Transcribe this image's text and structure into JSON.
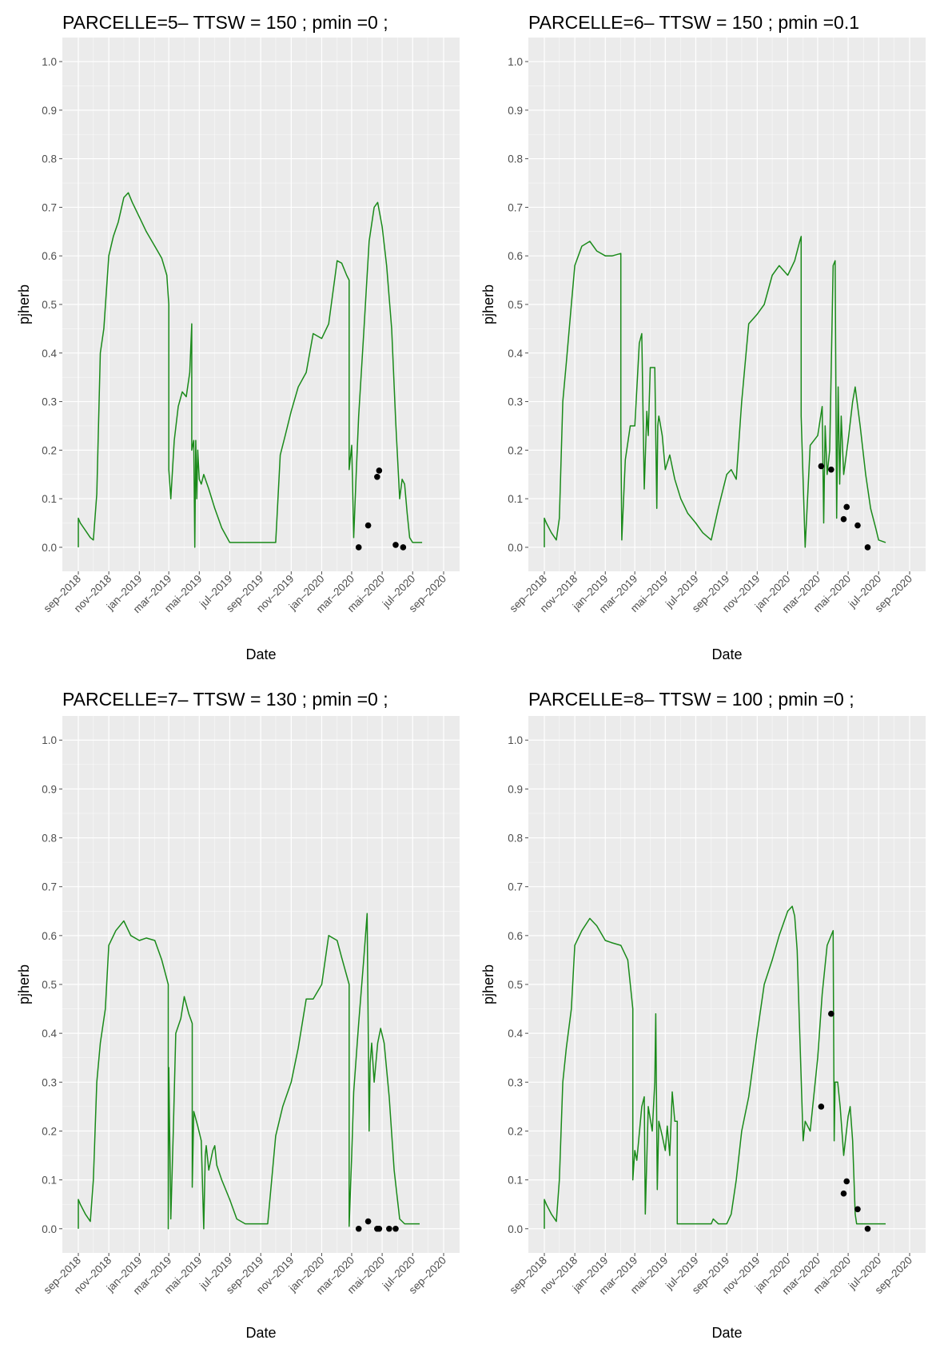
{
  "colors": {
    "panel_background": "#ebebeb",
    "grid_major": "#ffffff",
    "line": "#1a8a1a",
    "points": "#000000"
  },
  "chart_data": [
    {
      "type": "line",
      "title": "PARCELLE=5– TTSW = 150 ; pmin =0 ;",
      "xlabel": "Date",
      "ylabel": "pjherb",
      "ylim": [
        0,
        1.0
      ],
      "yticks": [
        "0.0",
        "0.1",
        "0.2",
        "0.3",
        "0.4",
        "0.5",
        "0.6",
        "0.7",
        "0.8",
        "0.9",
        "1.0"
      ],
      "xticks": [
        "sep–2018",
        "nov–2018",
        "jan–2019",
        "mar–2019",
        "mai–2019",
        "jul–2019",
        "sep–2019",
        "nov–2019",
        "jan–2020",
        "mar–2020",
        "mai–2020",
        "jul–2020",
        "sep–2020"
      ],
      "grid": true,
      "series": [
        {
          "x": [
            "2018-09-01",
            "2018-09-01",
            "2018-09-05",
            "2018-09-15",
            "2018-09-25",
            "2018-10-01",
            "2018-10-08",
            "2018-10-15",
            "2018-10-22",
            "2018-11-01",
            "2018-11-10",
            "2018-11-20",
            "2018-12-01",
            "2018-12-10",
            "2018-12-18",
            "2019-01-01",
            "2019-01-15",
            "2019-02-01",
            "2019-02-15",
            "2019-02-25",
            "2019-03-01",
            "2019-03-01",
            "2019-03-05",
            "2019-03-12",
            "2019-03-20",
            "2019-03-28",
            "2019-04-05",
            "2019-04-12",
            "2019-04-16",
            "2019-04-16",
            "2019-04-20",
            "2019-04-22",
            "2019-04-24",
            "2019-04-26",
            "2019-04-28",
            "2019-05-01",
            "2019-05-05",
            "2019-05-10",
            "2019-05-20",
            "2019-06-01",
            "2019-06-15",
            "2019-07-01",
            "2019-07-15",
            "2019-08-01",
            "2019-08-15",
            "2019-09-01",
            "2019-09-15",
            "2019-10-01",
            "2019-10-10",
            "2019-10-20",
            "2019-11-01",
            "2019-11-15",
            "2019-12-01",
            "2019-12-15",
            "2020-01-01",
            "2020-01-15",
            "2020-02-01",
            "2020-02-10",
            "2020-02-20",
            "2020-02-25",
            "2020-02-25",
            "2020-03-01",
            "2020-03-05",
            "2020-03-10",
            "2020-03-15",
            "2020-03-25",
            "2020-04-05",
            "2020-04-15",
            "2020-04-22",
            "2020-05-01",
            "2020-05-10",
            "2020-05-20",
            "2020-05-28",
            "2020-06-05",
            "2020-06-10",
            "2020-06-15",
            "2020-06-20",
            "2020-06-25",
            "2020-07-01",
            "2020-07-10",
            "2020-07-20"
          ],
          "y": [
            0.0,
            0.06,
            0.05,
            0.035,
            0.02,
            0.015,
            0.11,
            0.4,
            0.45,
            0.6,
            0.64,
            0.67,
            0.72,
            0.73,
            0.71,
            0.68,
            0.65,
            0.62,
            0.595,
            0.56,
            0.5,
            0.16,
            0.1,
            0.22,
            0.29,
            0.32,
            0.31,
            0.36,
            0.46,
            0.2,
            0.22,
            0.0,
            0.22,
            0.1,
            0.2,
            0.14,
            0.13,
            0.15,
            0.12,
            0.08,
            0.04,
            0.01,
            0.01,
            0.01,
            0.01,
            0.01,
            0.01,
            0.01,
            0.19,
            0.23,
            0.28,
            0.33,
            0.36,
            0.44,
            0.43,
            0.46,
            0.59,
            0.585,
            0.56,
            0.55,
            0.16,
            0.21,
            0.02,
            0.15,
            0.27,
            0.44,
            0.63,
            0.7,
            0.71,
            0.66,
            0.58,
            0.45,
            0.26,
            0.1,
            0.14,
            0.13,
            0.07,
            0.02,
            0.01,
            0.01,
            0.01
          ]
        }
      ],
      "observations": {
        "x": [
          "2020-03-15",
          "2020-04-03",
          "2020-04-21",
          "2020-04-25",
          "2020-05-28",
          "2020-06-12"
        ],
        "y": [
          0.0,
          0.045,
          0.145,
          0.158,
          0.005,
          0.0
        ]
      }
    },
    {
      "type": "line",
      "title": "PARCELLE=6– TTSW = 150 ; pmin =0.1",
      "xlabel": "Date",
      "ylabel": "pjherb",
      "ylim": [
        0,
        1.0
      ],
      "yticks": [
        "0.0",
        "0.1",
        "0.2",
        "0.3",
        "0.4",
        "0.5",
        "0.6",
        "0.7",
        "0.8",
        "0.9",
        "1.0"
      ],
      "xticks": [
        "sep–2018",
        "nov–2018",
        "jan–2019",
        "mar–2019",
        "mai–2019",
        "jul–2019",
        "sep–2019",
        "nov–2019",
        "jan–2020",
        "mar–2020",
        "mai–2020",
        "jul–2020",
        "sep–2020"
      ],
      "grid": true,
      "series": [
        {
          "x": [
            "2018-09-01",
            "2018-09-01",
            "2018-09-05",
            "2018-09-15",
            "2018-09-25",
            "2018-10-01",
            "2018-10-08",
            "2018-10-15",
            "2018-10-25",
            "2018-11-01",
            "2018-11-15",
            "2018-12-01",
            "2018-12-15",
            "2019-01-01",
            "2019-01-15",
            "2019-02-01",
            "2019-02-01",
            "2019-02-03",
            "2019-02-10",
            "2019-02-20",
            "2019-03-01",
            "2019-03-10",
            "2019-03-15",
            "2019-03-20",
            "2019-03-25",
            "2019-03-28",
            "2019-04-01",
            "2019-04-10",
            "2019-04-14",
            "2019-04-16",
            "2019-04-18",
            "2019-04-20",
            "2019-04-25",
            "2019-05-01",
            "2019-05-10",
            "2019-05-20",
            "2019-06-01",
            "2019-06-15",
            "2019-07-01",
            "2019-07-15",
            "2019-08-01",
            "2019-08-15",
            "2019-09-01",
            "2019-09-10",
            "2019-09-20",
            "2019-10-01",
            "2019-10-15",
            "2019-11-01",
            "2019-11-15",
            "2019-12-01",
            "2019-12-15",
            "2020-01-01",
            "2020-01-15",
            "2020-01-25",
            "2020-01-28",
            "2020-01-28",
            "2020-02-05",
            "2020-02-15",
            "2020-03-01",
            "2020-03-10",
            "2020-03-13",
            "2020-03-16",
            "2020-03-20",
            "2020-03-25",
            "2020-04-01",
            "2020-04-05",
            "2020-04-08",
            "2020-04-11",
            "2020-04-14",
            "2020-04-17",
            "2020-04-22",
            "2020-05-01",
            "2020-05-10",
            "2020-05-15",
            "2020-05-25",
            "2020-06-05",
            "2020-06-15",
            "2020-06-25",
            "2020-07-01",
            "2020-07-15"
          ],
          "y": [
            0.0,
            0.06,
            0.05,
            0.03,
            0.015,
            0.06,
            0.3,
            0.38,
            0.5,
            0.58,
            0.62,
            0.63,
            0.61,
            0.6,
            0.6,
            0.605,
            0.25,
            0.015,
            0.18,
            0.25,
            0.25,
            0.42,
            0.44,
            0.12,
            0.28,
            0.23,
            0.37,
            0.37,
            0.08,
            0.25,
            0.27,
            0.26,
            0.23,
            0.16,
            0.19,
            0.14,
            0.1,
            0.07,
            0.05,
            0.03,
            0.015,
            0.08,
            0.15,
            0.16,
            0.14,
            0.3,
            0.46,
            0.48,
            0.5,
            0.56,
            0.58,
            0.56,
            0.59,
            0.63,
            0.64,
            0.27,
            0.0,
            0.21,
            0.23,
            0.29,
            0.05,
            0.25,
            0.15,
            0.2,
            0.58,
            0.59,
            0.06,
            0.33,
            0.13,
            0.27,
            0.15,
            0.22,
            0.3,
            0.33,
            0.25,
            0.15,
            0.08,
            0.04,
            0.015,
            0.01
          ]
        }
      ],
      "observations": {
        "x": [
          "2020-03-08",
          "2020-03-28",
          "2020-04-22",
          "2020-04-28",
          "2020-05-20",
          "2020-06-09"
        ],
        "y": [
          0.167,
          0.16,
          0.058,
          0.083,
          0.045,
          0.0
        ]
      }
    },
    {
      "type": "line",
      "title": "PARCELLE=7– TTSW = 130 ; pmin =0 ;",
      "xlabel": "Date",
      "ylabel": "pjherb",
      "ylim": [
        0,
        1.0
      ],
      "yticks": [
        "0.0",
        "0.1",
        "0.2",
        "0.3",
        "0.4",
        "0.5",
        "0.6",
        "0.7",
        "0.8",
        "0.9",
        "1.0"
      ],
      "xticks": [
        "sep–2018",
        "nov–2018",
        "jan–2019",
        "mar–2019",
        "mai–2019",
        "jul–2019",
        "sep–2019",
        "nov–2019",
        "jan–2020",
        "mar–2020",
        "mai–2020",
        "jul–2020",
        "sep–2020"
      ],
      "grid": true,
      "series": [
        {
          "x": [
            "2018-09-01",
            "2018-09-01",
            "2018-09-05",
            "2018-09-15",
            "2018-09-25",
            "2018-10-01",
            "2018-10-08",
            "2018-10-15",
            "2018-10-25",
            "2018-11-01",
            "2018-11-15",
            "2018-12-01",
            "2018-12-15",
            "2019-01-01",
            "2019-01-15",
            "2019-02-01",
            "2019-02-15",
            "2019-02-28",
            "2019-02-28",
            "2019-03-01",
            "2019-03-05",
            "2019-03-10",
            "2019-03-15",
            "2019-03-25",
            "2019-04-01",
            "2019-04-10",
            "2019-04-17",
            "2019-04-17",
            "2019-04-20",
            "2019-04-28",
            "2019-05-05",
            "2019-05-10",
            "2019-05-13",
            "2019-05-15",
            "2019-05-20",
            "2019-05-28",
            "2019-06-01",
            "2019-06-05",
            "2019-06-15",
            "2019-07-01",
            "2019-07-15",
            "2019-08-01",
            "2019-08-15",
            "2019-09-01",
            "2019-09-15",
            "2019-10-01",
            "2019-10-15",
            "2019-11-01",
            "2019-11-15",
            "2019-12-01",
            "2019-12-15",
            "2020-01-01",
            "2020-01-15",
            "2020-02-01",
            "2020-02-10",
            "2020-02-25",
            "2020-02-25",
            "2020-03-01",
            "2020-03-05",
            "2020-03-15",
            "2020-03-25",
            "2020-04-01",
            "2020-04-05",
            "2020-04-07",
            "2020-04-10",
            "2020-04-15",
            "2020-04-22",
            "2020-04-28",
            "2020-05-05",
            "2020-05-15",
            "2020-05-25",
            "2020-06-05",
            "2020-06-15",
            "2020-06-25",
            "2020-07-15"
          ],
          "y": [
            0.0,
            0.06,
            0.05,
            0.03,
            0.015,
            0.1,
            0.3,
            0.38,
            0.45,
            0.58,
            0.61,
            0.63,
            0.6,
            0.59,
            0.595,
            0.59,
            0.55,
            0.5,
            0.0,
            0.33,
            0.02,
            0.2,
            0.4,
            0.43,
            0.475,
            0.44,
            0.42,
            0.085,
            0.24,
            0.21,
            0.18,
            0.0,
            0.15,
            0.17,
            0.12,
            0.16,
            0.17,
            0.13,
            0.1,
            0.06,
            0.02,
            0.01,
            0.01,
            0.01,
            0.01,
            0.19,
            0.25,
            0.3,
            0.37,
            0.47,
            0.47,
            0.5,
            0.6,
            0.59,
            0.555,
            0.5,
            0.005,
            0.15,
            0.28,
            0.42,
            0.55,
            0.645,
            0.2,
            0.34,
            0.38,
            0.3,
            0.38,
            0.41,
            0.38,
            0.27,
            0.12,
            0.02,
            0.01,
            0.01,
            0.01
          ]
        }
      ],
      "observations": {
        "x": [
          "2020-03-15",
          "2020-04-03",
          "2020-04-21",
          "2020-04-25",
          "2020-05-15",
          "2020-05-28"
        ],
        "y": [
          0.0,
          0.015,
          0.0,
          0.0,
          0.0,
          0.0
        ]
      }
    },
    {
      "type": "line",
      "title": "PARCELLE=8– TTSW = 100 ; pmin =0 ;",
      "xlabel": "Date",
      "ylabel": "pjherb",
      "ylim": [
        0,
        1.0
      ],
      "yticks": [
        "0.0",
        "0.1",
        "0.2",
        "0.3",
        "0.4",
        "0.5",
        "0.6",
        "0.7",
        "0.8",
        "0.9",
        "1.0"
      ],
      "xticks": [
        "sep–2018",
        "nov–2018",
        "jan–2019",
        "mar–2019",
        "mai–2019",
        "jul–2019",
        "sep–2019",
        "nov–2019",
        "jan–2020",
        "mar–2020",
        "mai–2020",
        "jul–2020",
        "sep–2020"
      ],
      "grid": true,
      "series": [
        {
          "x": [
            "2018-09-01",
            "2018-09-01",
            "2018-09-05",
            "2018-09-15",
            "2018-09-25",
            "2018-10-01",
            "2018-10-08",
            "2018-10-15",
            "2018-10-25",
            "2018-11-01",
            "2018-11-15",
            "2018-12-01",
            "2018-12-15",
            "2019-01-01",
            "2019-01-15",
            "2019-02-01",
            "2019-02-15",
            "2019-02-25",
            "2019-02-25",
            "2019-03-01",
            "2019-03-05",
            "2019-03-15",
            "2019-03-20",
            "2019-03-22",
            "2019-03-28",
            "2019-04-05",
            "2019-04-10",
            "2019-04-12",
            "2019-04-15",
            "2019-04-18",
            "2019-04-25",
            "2019-05-01",
            "2019-05-05",
            "2019-05-10",
            "2019-05-15",
            "2019-05-20",
            "2019-05-25",
            "2019-05-25",
            "2019-06-15",
            "2019-07-01",
            "2019-07-15",
            "2019-08-01",
            "2019-08-05",
            "2019-08-15",
            "2019-09-01",
            "2019-09-10",
            "2019-09-20",
            "2019-10-01",
            "2019-10-15",
            "2019-11-01",
            "2019-11-15",
            "2019-12-01",
            "2019-12-15",
            "2020-01-01",
            "2020-01-10",
            "2020-01-15",
            "2020-01-20",
            "2020-01-25",
            "2020-02-01",
            "2020-02-05",
            "2020-02-15",
            "2020-03-01",
            "2020-03-10",
            "2020-03-20",
            "2020-03-28",
            "2020-04-01",
            "2020-04-03",
            "2020-04-05",
            "2020-04-10",
            "2020-04-15",
            "2020-04-22",
            "2020-05-01",
            "2020-05-05",
            "2020-05-10",
            "2020-05-15",
            "2020-05-18",
            "2020-05-18",
            "2020-06-01",
            "2020-06-20",
            "2020-07-15"
          ],
          "y": [
            0.0,
            0.06,
            0.05,
            0.03,
            0.015,
            0.1,
            0.3,
            0.37,
            0.45,
            0.58,
            0.61,
            0.635,
            0.62,
            0.59,
            0.585,
            0.58,
            0.55,
            0.45,
            0.1,
            0.16,
            0.14,
            0.25,
            0.27,
            0.03,
            0.25,
            0.2,
            0.3,
            0.44,
            0.08,
            0.22,
            0.19,
            0.16,
            0.21,
            0.15,
            0.28,
            0.22,
            0.22,
            0.01,
            0.01,
            0.01,
            0.01,
            0.01,
            0.02,
            0.01,
            0.01,
            0.03,
            0.1,
            0.2,
            0.27,
            0.4,
            0.5,
            0.55,
            0.6,
            0.65,
            0.66,
            0.64,
            0.57,
            0.4,
            0.18,
            0.22,
            0.2,
            0.35,
            0.48,
            0.58,
            0.6,
            0.61,
            0.18,
            0.3,
            0.3,
            0.25,
            0.15,
            0.23,
            0.25,
            0.18,
            0.03,
            0.01,
            0.01,
            0.01,
            0.01,
            0.01
          ]
        }
      ],
      "observations": {
        "x": [
          "2020-03-08",
          "2020-03-28",
          "2020-04-22",
          "2020-04-28",
          "2020-05-20",
          "2020-06-09"
        ],
        "y": [
          0.25,
          0.44,
          0.072,
          0.097,
          0.04,
          0.0
        ]
      }
    }
  ]
}
